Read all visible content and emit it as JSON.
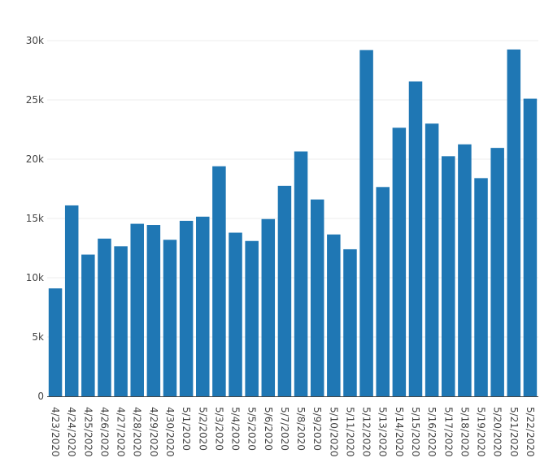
{
  "chart_data": {
    "type": "bar",
    "categories": [
      "4/23/2020",
      "4/24/2020",
      "4/25/2020",
      "4/26/2020",
      "4/27/2020",
      "4/28/2020",
      "4/29/2020",
      "4/30/2020",
      "5/1/2020",
      "5/2/2020",
      "5/3/2020",
      "5/4/2020",
      "5/5/2020",
      "5/6/2020",
      "5/7/2020",
      "5/8/2020",
      "5/9/2020",
      "5/10/2020",
      "5/11/2020",
      "5/12/2020",
      "5/13/2020",
      "5/14/2020",
      "5/15/2020",
      "5/16/2020",
      "5/17/2020",
      "5/18/2020",
      "5/19/2020",
      "5/20/2020",
      "5/21/2020",
      "5/22/2020"
    ],
    "values": [
      9100,
      16100,
      11950,
      13300,
      12650,
      14550,
      14450,
      13200,
      14800,
      15150,
      19400,
      13800,
      13100,
      14950,
      17750,
      20650,
      16600,
      13650,
      12400,
      29200,
      17650,
      22650,
      26550,
      23000,
      20250,
      21250,
      18400,
      20950,
      29250,
      25100
    ],
    "ylim": [
      0,
      30000
    ],
    "yticks": [
      0,
      5000,
      10000,
      15000,
      20000,
      25000,
      30000
    ],
    "ytick_labels": [
      "0",
      "5k",
      "10k",
      "15k",
      "20k",
      "25k",
      "30k"
    ],
    "title": "",
    "xlabel": "",
    "ylabel": "",
    "grid": true,
    "bar_color": "#1f77b4"
  }
}
